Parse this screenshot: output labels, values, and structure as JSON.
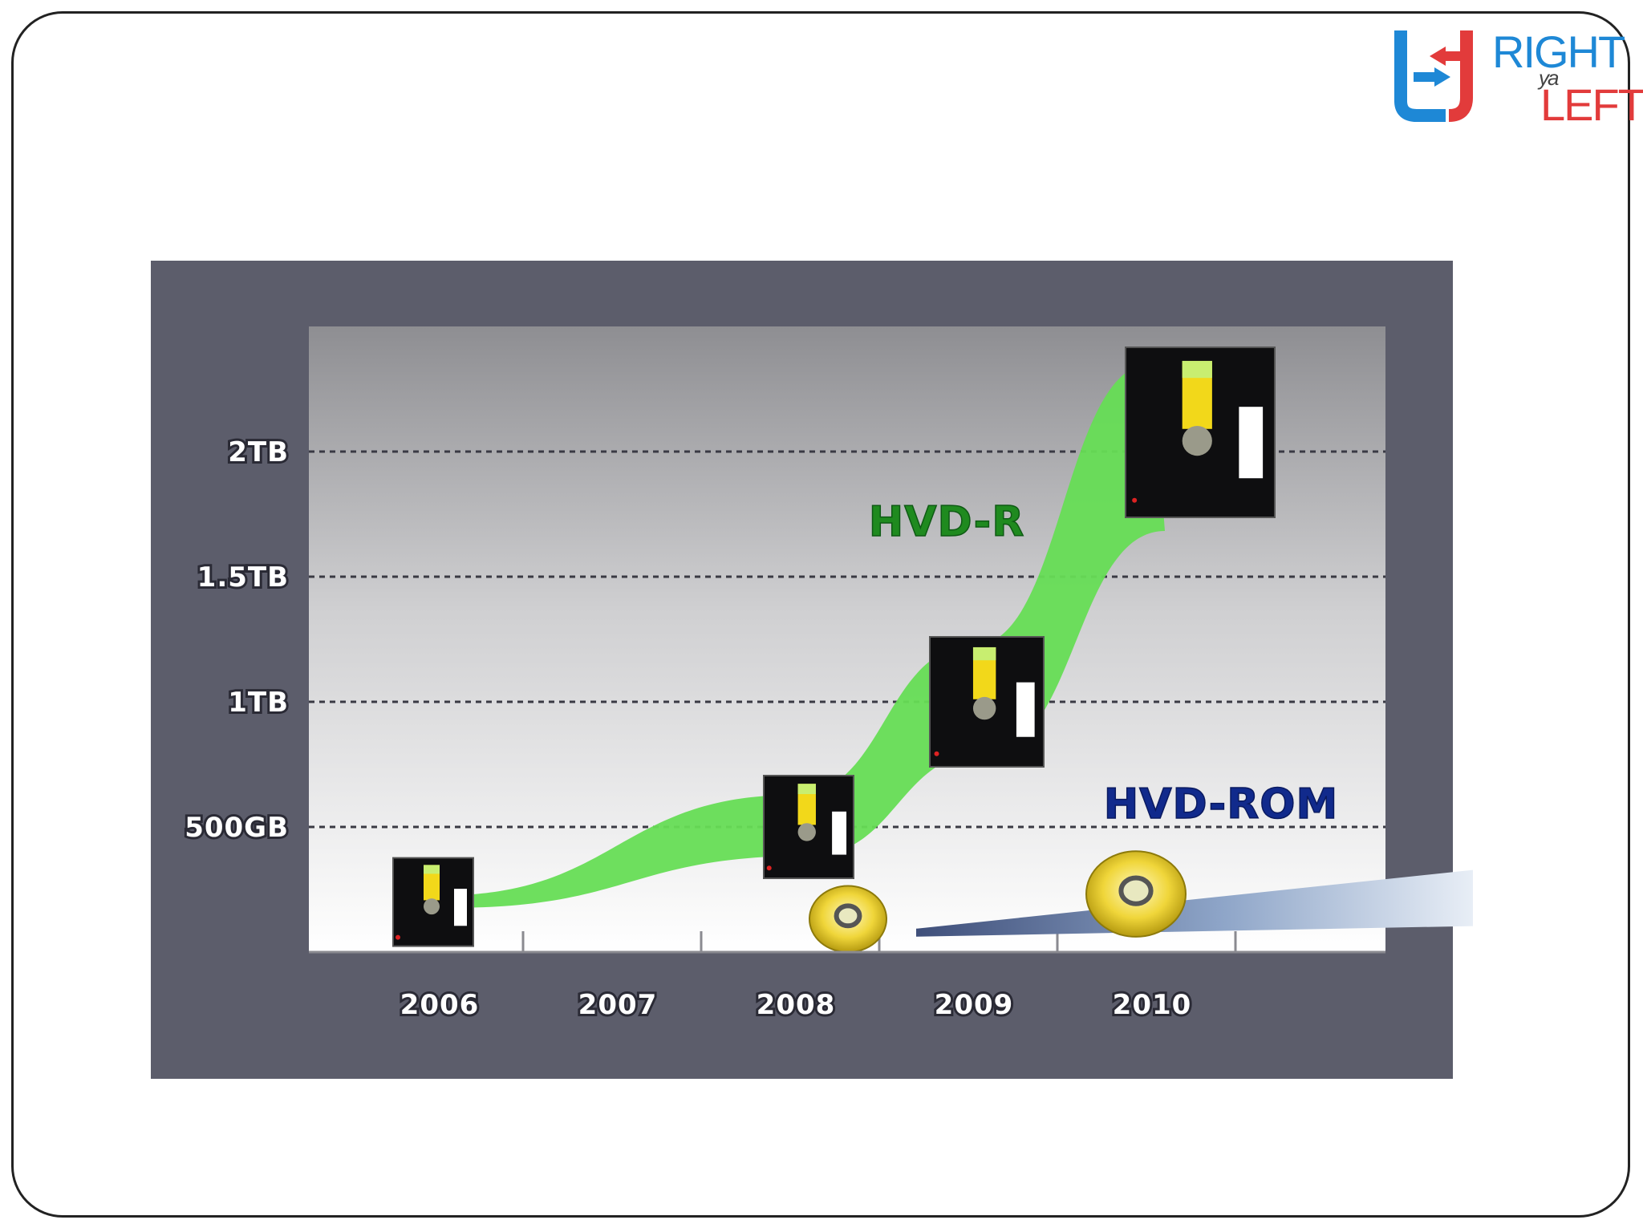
{
  "logo": {
    "line1": "RIGHT",
    "line2": "ya",
    "line3": "LEFT"
  },
  "chart_data": {
    "type": "area",
    "title": "",
    "xlabel": "",
    "ylabel": "",
    "categories": [
      "2006",
      "2007",
      "2008",
      "2009",
      "2010"
    ],
    "yticks": [
      {
        "value": 500,
        "label": "500GB"
      },
      {
        "value": 1000,
        "label": "1TB"
      },
      {
        "value": 1500,
        "label": "1.5TB"
      },
      {
        "value": 2000,
        "label": "2TB"
      }
    ],
    "ylim": [
      0,
      2500
    ],
    "y_unit": "GB",
    "grid": "horizontal dashed",
    "series": [
      {
        "name": "HVD-R",
        "color": "#66dd55",
        "label_color": "#1f8a1f",
        "icon": "hvd-cartridge-icon",
        "x": [
          "2006",
          "2008",
          "2009",
          "2010"
        ],
        "values": [
          200,
          500,
          1000,
          2000
        ]
      },
      {
        "name": "HVD-ROM",
        "color": "#9fb8d6",
        "label_color": "#112a8c",
        "icon": "disc-icon",
        "x": [
          "2008",
          "2010"
        ],
        "values": [
          100,
          200
        ]
      }
    ]
  }
}
